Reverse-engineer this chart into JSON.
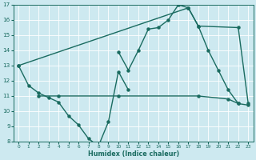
{
  "xlabel": "Humidex (Indice chaleur)",
  "xlim": [
    -0.5,
    23.5
  ],
  "ylim": [
    8,
    17
  ],
  "yticks": [
    8,
    9,
    10,
    11,
    12,
    13,
    14,
    15,
    16,
    17
  ],
  "xticks": [
    0,
    1,
    2,
    3,
    4,
    5,
    6,
    7,
    8,
    9,
    10,
    11,
    12,
    13,
    14,
    15,
    16,
    17,
    18,
    19,
    20,
    21,
    22,
    23
  ],
  "bg_color": "#cde9f0",
  "line_color": "#1a6b60",
  "grid_color": "#ffffff",
  "line1_x": [
    0,
    1,
    2,
    3,
    4,
    5,
    6,
    7,
    8,
    9,
    10,
    11
  ],
  "line1_y": [
    13.0,
    11.7,
    11.2,
    10.9,
    10.6,
    9.7,
    9.1,
    8.2,
    7.7,
    9.3,
    12.6,
    11.4
  ],
  "line2_x": [
    10,
    11,
    12,
    13,
    14,
    15,
    16,
    17,
    18,
    19,
    20,
    21,
    22
  ],
  "line2_y": [
    13.9,
    12.7,
    14.0,
    15.4,
    15.5,
    16.0,
    17.0,
    16.8,
    15.6,
    14.0,
    12.7,
    11.4,
    10.5
  ],
  "line3_x": [
    0,
    17,
    18,
    22,
    23
  ],
  "line3_y": [
    13.0,
    16.8,
    15.6,
    15.5,
    10.5
  ],
  "line4_x": [
    2,
    4,
    10,
    18,
    21,
    22,
    23
  ],
  "line4_y": [
    11.0,
    11.0,
    11.0,
    11.0,
    10.8,
    10.5,
    10.4
  ]
}
